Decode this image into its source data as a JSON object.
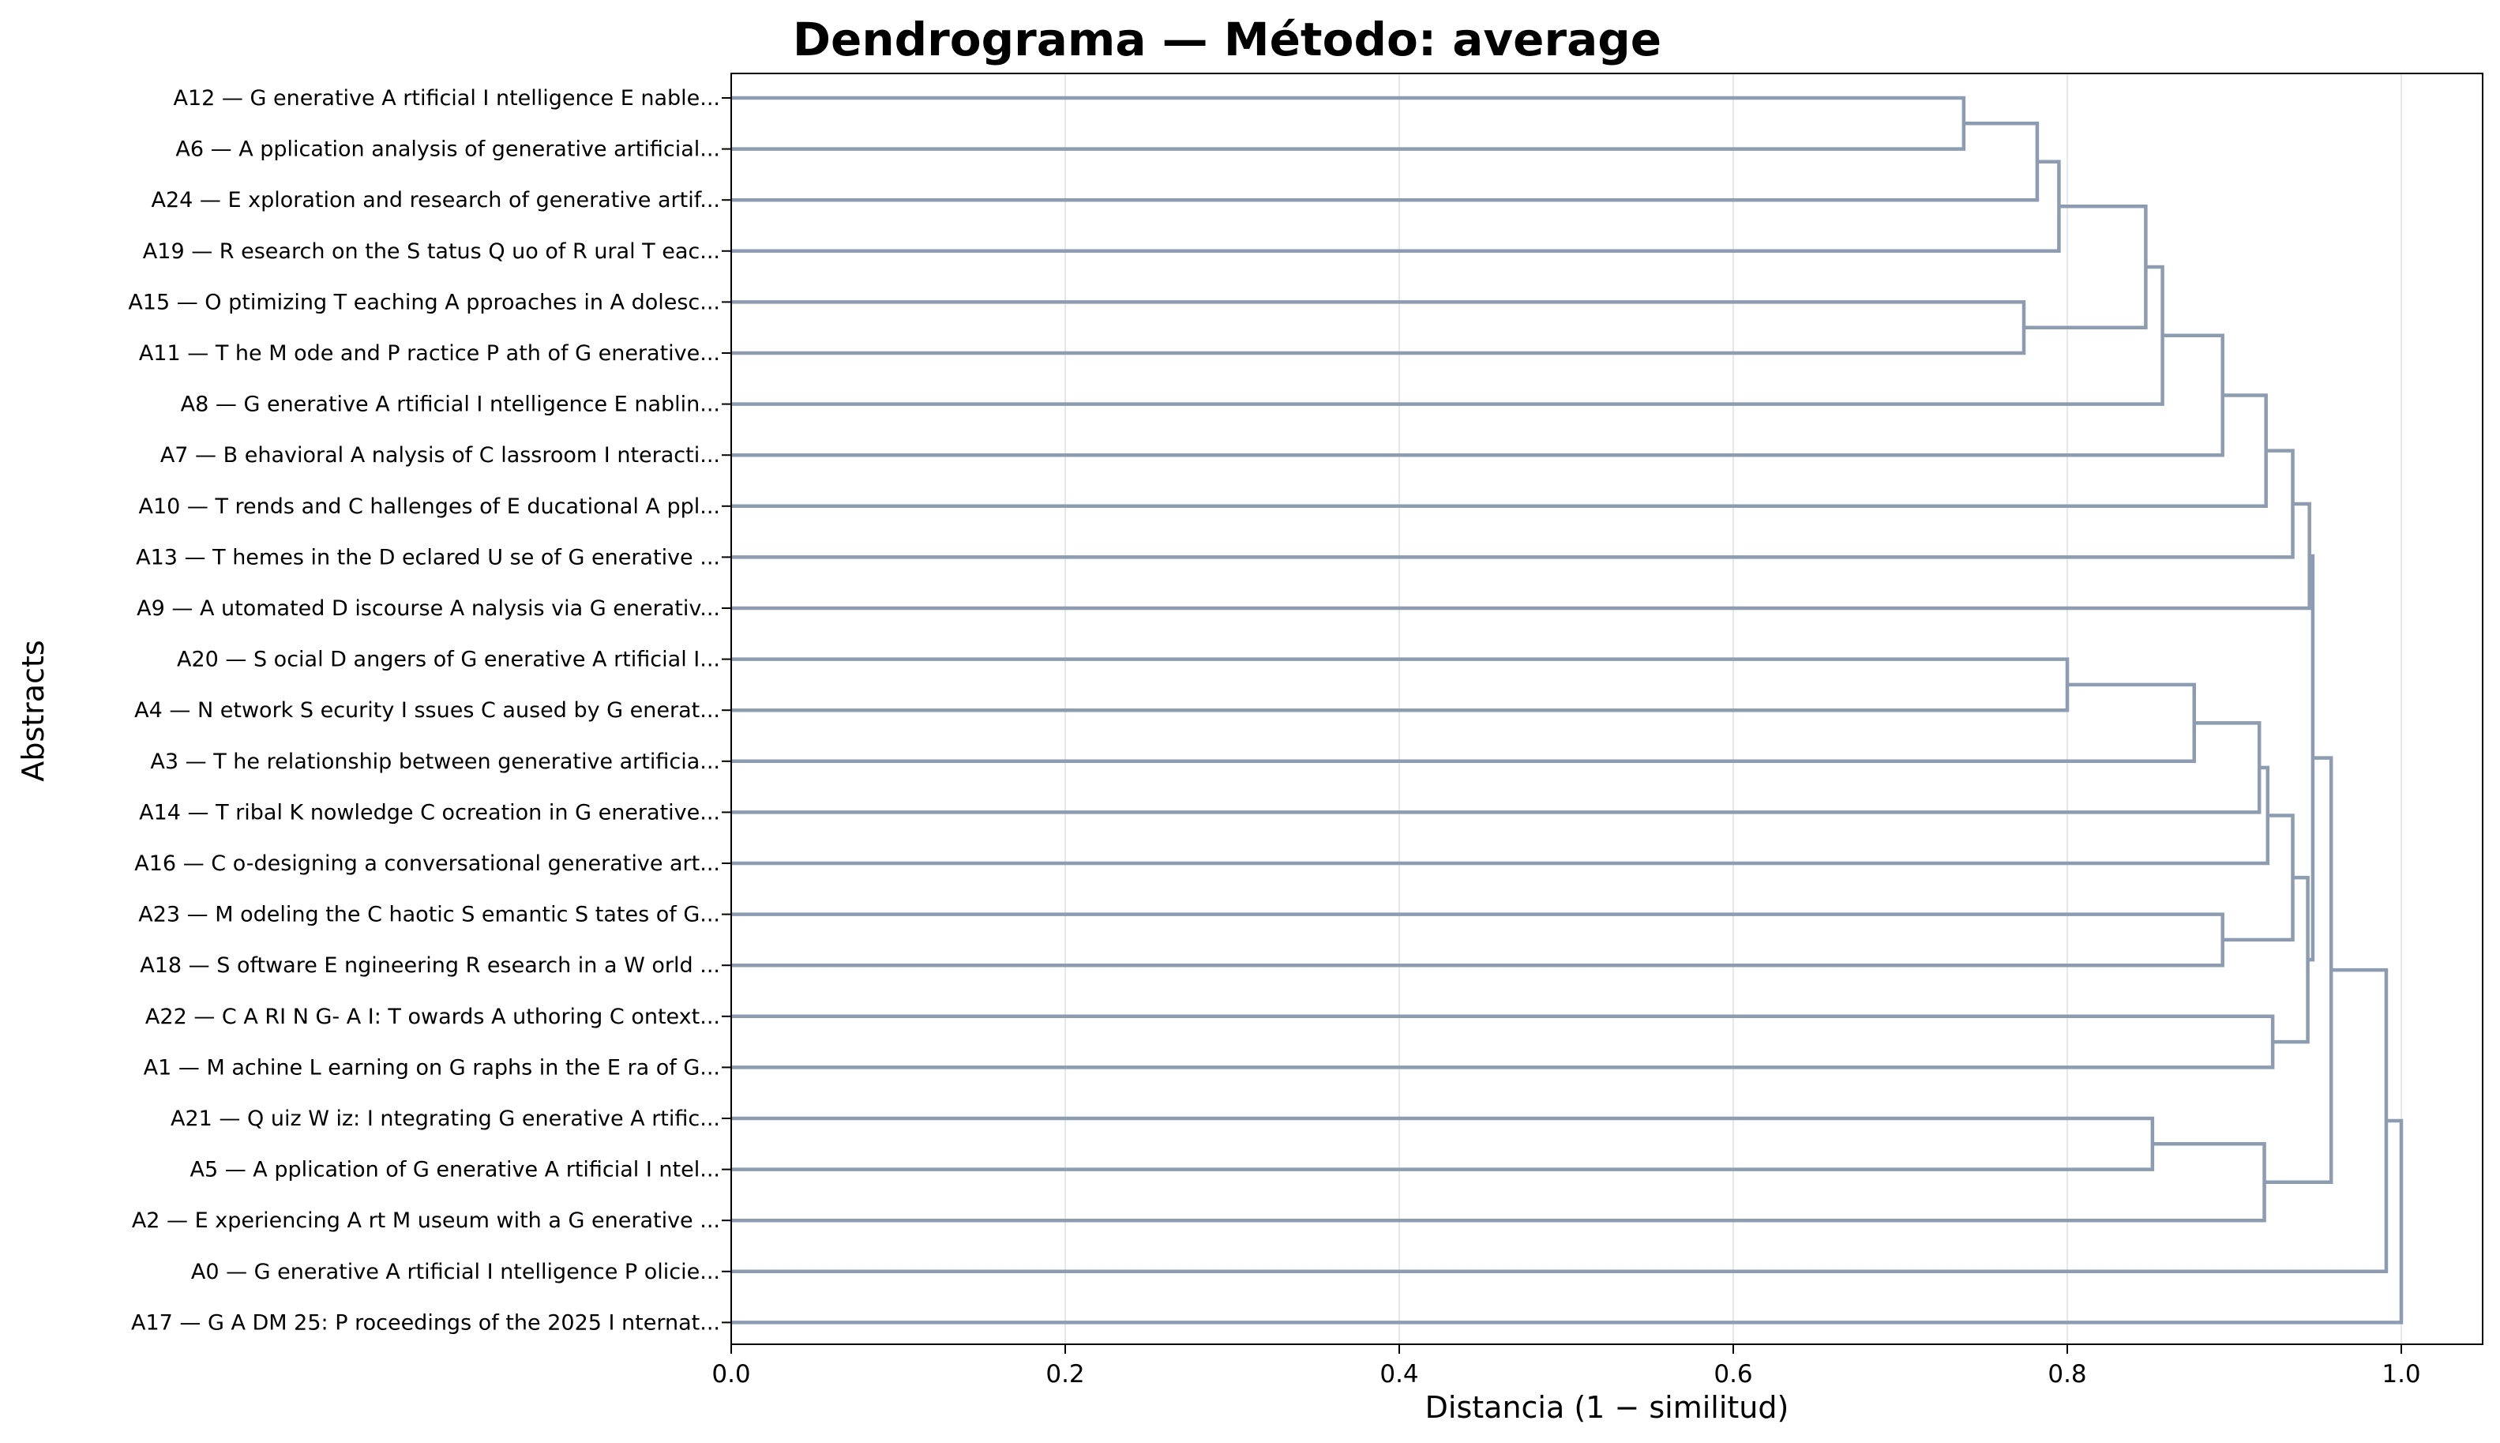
{
  "chart_data": {
    "type": "dendrogram",
    "title": "Dendrograma — Método: average",
    "xlabel": "Distancia (1 − similitud)",
    "ylabel": "Abstracts",
    "xlim": [
      0,
      1.05
    ],
    "xticks": [
      "0.0",
      "0.2",
      "0.4",
      "0.6",
      "0.8",
      "1.0"
    ],
    "grid": "vertical",
    "leaves": [
      "A12 — G enerative A rtificial I ntelligence E nable...",
      "A6 — A pplication analysis of generative artificial...",
      "A24 — E xploration and research of generative artif...",
      "A19 — R esearch on the S tatus Q uo of R ural T eac...",
      "A15 — O ptimizing T eaching A pproaches in A dolesc...",
      "A11 — T he M ode and P ractice P ath of G enerative...",
      "A8 — G enerative A rtificial I ntelligence E nablin...",
      "A7 — B ehavioral A nalysis of C lassroom I nteracti...",
      "A10 — T rends and C hallenges of E ducational A ppl...",
      "A13 — T hemes in the D eclared U se of G enerative ...",
      "A9 — A utomated D iscourse A nalysis via G enerativ...",
      "A20 — S ocial D angers of G enerative A rtificial I...",
      "A4 — N etwork S ecurity I ssues C aused by G enerat...",
      "A3 — T he relationship between generative artificia...",
      "A14 — T ribal K nowledge C ocreation in G enerative...",
      "A16 — C o-designing a conversational generative art...",
      "A23 — M odeling the C haotic S emantic S tates of G...",
      "A18 — S oftware E ngineering R esearch in a W orld ...",
      "A22 — C A RI N G- A I: T owards A uthoring C ontext...",
      "A1 — M achine L earning on G raphs in the E ra of G...",
      "A21 — Q uiz W iz: I ntegrating G enerative A rtific...",
      "A5 — A pplication of G enerative A rtificial I ntel...",
      "A2 — E xperiencing A rt M useum with a G enerative ...",
      "A0 — G enerative A rtificial I ntelligence P olicie...",
      "A17 — G A DM 25: P roceedings of the 2025 I nternat..."
    ],
    "merges": [
      {
        "id": "c1",
        "a": "L0",
        "b": "L1",
        "height": 0.738
      },
      {
        "id": "c2",
        "a": "c1",
        "b": "L2",
        "height": 0.782
      },
      {
        "id": "c3",
        "a": "c2",
        "b": "L3",
        "height": 0.795
      },
      {
        "id": "c4",
        "a": "L4",
        "b": "L5",
        "height": 0.774
      },
      {
        "id": "c5",
        "a": "c3",
        "b": "c4",
        "height": 0.847
      },
      {
        "id": "c6",
        "a": "c5",
        "b": "L6",
        "height": 0.857
      },
      {
        "id": "c7",
        "a": "c6",
        "b": "L7",
        "height": 0.893
      },
      {
        "id": "c8",
        "a": "c7",
        "b": "L8",
        "height": 0.919
      },
      {
        "id": "c9",
        "a": "c8",
        "b": "L9",
        "height": 0.935
      },
      {
        "id": "c10",
        "a": "c9",
        "b": "L10",
        "height": 0.945
      },
      {
        "id": "c11",
        "a": "L11",
        "b": "L12",
        "height": 0.8
      },
      {
        "id": "c12",
        "a": "c11",
        "b": "L13",
        "height": 0.876
      },
      {
        "id": "c13",
        "a": "c12",
        "b": "L14",
        "height": 0.915
      },
      {
        "id": "c14",
        "a": "c13",
        "b": "L15",
        "height": 0.92
      },
      {
        "id": "c15",
        "a": "L16",
        "b": "L17",
        "height": 0.893
      },
      {
        "id": "c16",
        "a": "c14",
        "b": "c15",
        "height": 0.935
      },
      {
        "id": "c17",
        "a": "L18",
        "b": "L19",
        "height": 0.923
      },
      {
        "id": "c18",
        "a": "c16",
        "b": "c17",
        "height": 0.944
      },
      {
        "id": "c19",
        "a": "c10",
        "b": "c18",
        "height": 0.947
      },
      {
        "id": "c20",
        "a": "L20",
        "b": "L21",
        "height": 0.851
      },
      {
        "id": "c21",
        "a": "c20",
        "b": "L22",
        "height": 0.918
      },
      {
        "id": "c22",
        "a": "c19",
        "b": "c21",
        "height": 0.958
      },
      {
        "id": "c23",
        "a": "c22",
        "b": "L23",
        "height": 0.991
      },
      {
        "id": "c24",
        "a": "c23",
        "b": "L24",
        "height": 1.0
      }
    ],
    "colors": {
      "link": "#8d9cb0",
      "grid": "#e4e7ec"
    }
  }
}
